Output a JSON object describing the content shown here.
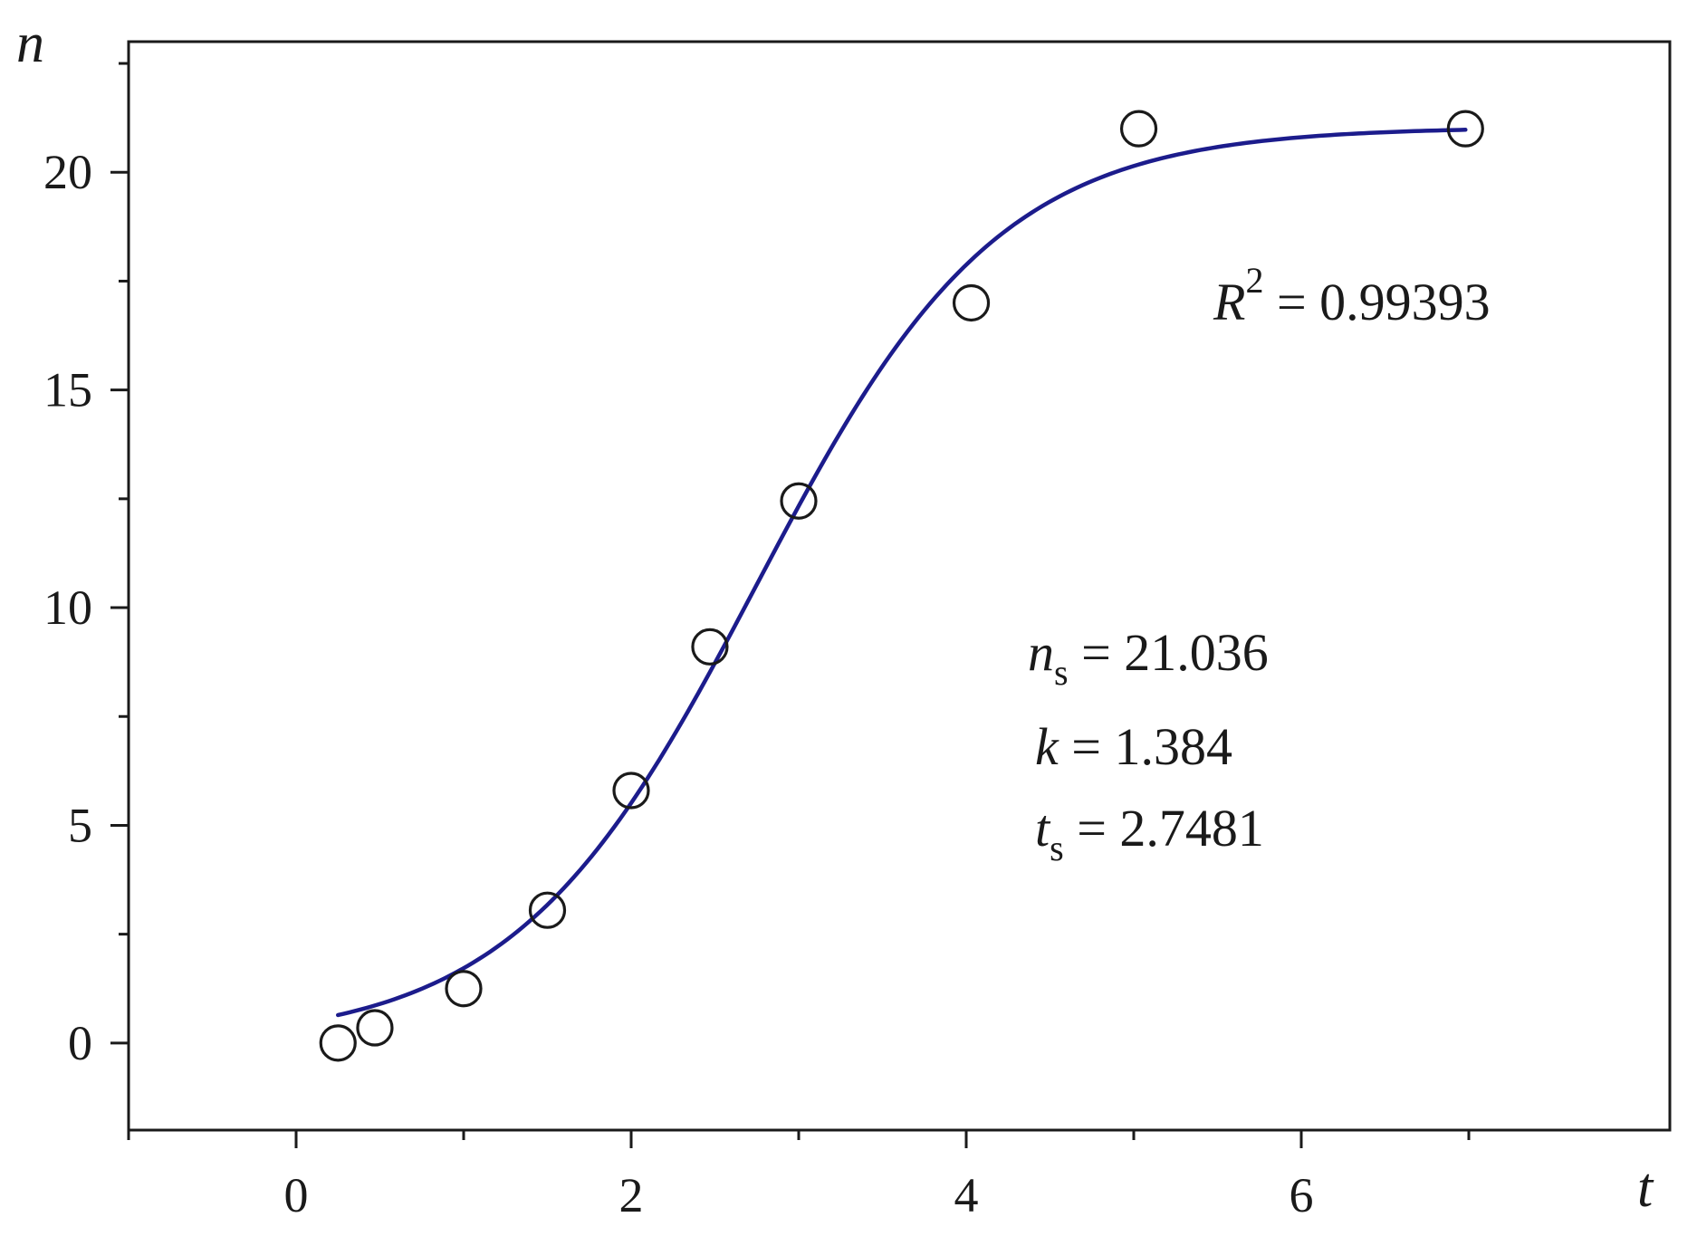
{
  "chart_data": {
    "type": "scatter",
    "xlabel": "t",
    "ylabel": "n",
    "xlim": [
      -1,
      8.2
    ],
    "ylim": [
      -2,
      23
    ],
    "x_ticks": [
      0,
      2,
      4,
      6
    ],
    "x_tick_labels": [
      "0",
      "2",
      "4",
      "6"
    ],
    "x_minor_ticks": [
      -1,
      1,
      3,
      5,
      7
    ],
    "y_ticks": [
      0,
      5,
      10,
      15,
      20
    ],
    "y_tick_labels": [
      "0",
      "5",
      "10",
      "15",
      "20"
    ],
    "y_minor_ticks": [
      2.5,
      7.5,
      12.5,
      17.5,
      22.5
    ],
    "grid": false,
    "series": [
      {
        "kind": "points",
        "marker": "open-circle",
        "x": [
          0.25,
          0.47,
          1.0,
          1.5,
          2.0,
          2.47,
          3.0,
          4.03,
          5.03,
          6.98
        ],
        "y": [
          0.0,
          0.35,
          1.25,
          3.05,
          5.8,
          9.1,
          12.45,
          17.0,
          21.0,
          21.0
        ]
      },
      {
        "kind": "fit-line",
        "color": "#1c1c8c",
        "model": "logistic",
        "params": {
          "ns": 21.036,
          "k": 1.384,
          "ts": 2.7481
        },
        "x_range": [
          0.25,
          6.98
        ]
      }
    ],
    "annotations": {
      "r2": {
        "symbol": "R",
        "exponent": "2",
        "text": " = 0.99393"
      },
      "params": [
        {
          "symbol": "n",
          "subscript": "s",
          "text": " = 21.036"
        },
        {
          "symbol": "k",
          "subscript": "",
          "text": " = 1.384"
        },
        {
          "symbol": "t",
          "subscript": "s",
          "text": " = 2.7481"
        }
      ]
    }
  }
}
